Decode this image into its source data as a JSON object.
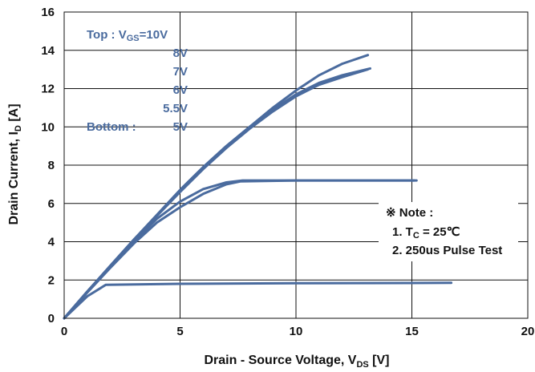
{
  "chart_data": {
    "type": "line",
    "xlabel_parts": [
      "Drain - Source Voltage, V",
      "DS",
      " [V]"
    ],
    "ylabel_parts": [
      "Drain Current, I",
      "D",
      " [A]"
    ],
    "xlim": [
      0,
      20
    ],
    "ylim": [
      0,
      16
    ],
    "x_ticks": [
      "0",
      "5",
      "10",
      "15",
      "20"
    ],
    "y_ticks": [
      "0",
      "2",
      "4",
      "6",
      "8",
      "10",
      "12",
      "14",
      "16"
    ],
    "grid": true,
    "series_color": "#4a6b9e",
    "series": [
      {
        "vgs": "10V",
        "points": [
          [
            0,
            0
          ],
          [
            1,
            1.4
          ],
          [
            2,
            2.75
          ],
          [
            3,
            4.1
          ],
          [
            4,
            5.4
          ],
          [
            5,
            6.7
          ],
          [
            6,
            7.9
          ],
          [
            7,
            9.0
          ],
          [
            8,
            10.0
          ],
          [
            9,
            11.0
          ],
          [
            10,
            11.9
          ],
          [
            11,
            12.7
          ],
          [
            12,
            13.3
          ],
          [
            13.1,
            13.75
          ]
        ]
      },
      {
        "vgs": "8V",
        "points": [
          [
            0,
            0
          ],
          [
            1,
            1.4
          ],
          [
            2,
            2.75
          ],
          [
            3,
            4.1
          ],
          [
            4,
            5.4
          ],
          [
            5,
            6.7
          ],
          [
            6,
            7.9
          ],
          [
            7,
            9.0
          ],
          [
            8,
            10.0
          ],
          [
            9,
            10.9
          ],
          [
            10,
            11.7
          ],
          [
            11,
            12.3
          ],
          [
            12,
            12.7
          ],
          [
            13.2,
            13.05
          ]
        ]
      },
      {
        "vgs": "7V",
        "points": [
          [
            0,
            0
          ],
          [
            1,
            1.4
          ],
          [
            2,
            2.75
          ],
          [
            3,
            4.1
          ],
          [
            4,
            5.35
          ],
          [
            5,
            6.6
          ],
          [
            6,
            7.8
          ],
          [
            7,
            8.9
          ],
          [
            8,
            9.9
          ],
          [
            9,
            10.8
          ],
          [
            10,
            11.6
          ],
          [
            11,
            12.2
          ],
          [
            12,
            12.6
          ],
          [
            13.1,
            13.0
          ]
        ]
      },
      {
        "vgs": "6V",
        "points": [
          [
            0,
            0
          ],
          [
            1,
            1.4
          ],
          [
            2,
            2.7
          ],
          [
            3,
            4.0
          ],
          [
            4,
            5.2
          ],
          [
            5,
            6.1
          ],
          [
            6,
            6.75
          ],
          [
            7,
            7.1
          ],
          [
            7.7,
            7.2
          ],
          [
            10,
            7.2
          ],
          [
            15.2,
            7.2
          ]
        ]
      },
      {
        "vgs": "5.5V",
        "points": [
          [
            0,
            0
          ],
          [
            1,
            1.35
          ],
          [
            2,
            2.65
          ],
          [
            3,
            3.9
          ],
          [
            4,
            5.0
          ],
          [
            5,
            5.8
          ],
          [
            6,
            6.5
          ],
          [
            7,
            7.0
          ],
          [
            7.6,
            7.15
          ],
          [
            10,
            7.2
          ],
          [
            15.1,
            7.2
          ]
        ]
      },
      {
        "vgs": "5V",
        "points": [
          [
            0,
            0
          ],
          [
            1,
            1.15
          ],
          [
            1.8,
            1.75
          ],
          [
            5,
            1.8
          ],
          [
            10,
            1.83
          ],
          [
            16.7,
            1.85
          ]
        ]
      }
    ],
    "legend": {
      "top_label": "Top : V",
      "top_label_sub": "GS",
      "top_value": "=10V",
      "entries": [
        "8V",
        "7V",
        "6V",
        "5.5V"
      ],
      "bottom_label": "Bottom :",
      "bottom_value": "5V"
    },
    "note": {
      "title": "※ Note :",
      "line1_parts": [
        "1. T",
        "C",
        " = 25℃"
      ],
      "line2": "2. 250us Pulse Test"
    }
  }
}
